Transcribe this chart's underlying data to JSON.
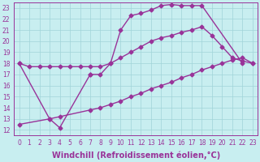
{
  "bg_color": "#c8eef0",
  "grid_color": "#a0d4d8",
  "line_color": "#993399",
  "marker": "D",
  "markersize": 2.5,
  "linewidth": 1.0,
  "xlabel": "Windchill (Refroidissement éolien,°C)",
  "xlabel_fontsize": 7,
  "tick_fontsize": 5.5,
  "xlim": [
    -0.5,
    23.5
  ],
  "ylim": [
    11.5,
    23.5
  ],
  "xticks": [
    0,
    1,
    2,
    3,
    4,
    5,
    6,
    7,
    8,
    9,
    10,
    11,
    12,
    13,
    14,
    15,
    16,
    17,
    18,
    19,
    20,
    21,
    22,
    23
  ],
  "yticks": [
    12,
    13,
    14,
    15,
    16,
    17,
    18,
    19,
    20,
    21,
    22,
    23
  ],
  "lines": [
    {
      "x": [
        0,
        1,
        2,
        3,
        4,
        5,
        6,
        7,
        8,
        9,
        10,
        11,
        12,
        13,
        14,
        15,
        16,
        17,
        18,
        19,
        20,
        21,
        22,
        23
      ],
      "y": [
        18,
        17.7,
        17.7,
        17.7,
        17.7,
        17.7,
        17.7,
        17.7,
        17.7,
        18.0,
        18.5,
        19.0,
        19.5,
        20.0,
        20.3,
        20.5,
        20.8,
        21.0,
        21.3,
        20.5,
        19.5,
        18.5,
        18.2,
        18.0
      ],
      "show_markers": false
    },
    {
      "x": [
        0,
        3,
        4,
        7,
        7,
        8,
        9,
        10,
        11,
        12,
        13,
        14,
        15,
        16,
        17,
        18,
        22
      ],
      "y": [
        18,
        13,
        12.2,
        17.0,
        17.0,
        17.0,
        18.0,
        21.0,
        22.3,
        22.5,
        22.8,
        23.2,
        23.3,
        23.2,
        23.2,
        23.2,
        18.0
      ],
      "show_markers": true
    },
    {
      "x": [
        0,
        3,
        4,
        7,
        8,
        9,
        10,
        11,
        12,
        13,
        14,
        15,
        16,
        17,
        18,
        19,
        20,
        21,
        22,
        23
      ],
      "y": [
        12.5,
        13.0,
        13.2,
        13.8,
        14.0,
        14.3,
        14.6,
        15.0,
        15.3,
        15.7,
        16.0,
        16.3,
        16.7,
        17.0,
        17.4,
        17.7,
        18.0,
        18.3,
        18.5,
        18.0
      ],
      "show_markers": false
    }
  ]
}
